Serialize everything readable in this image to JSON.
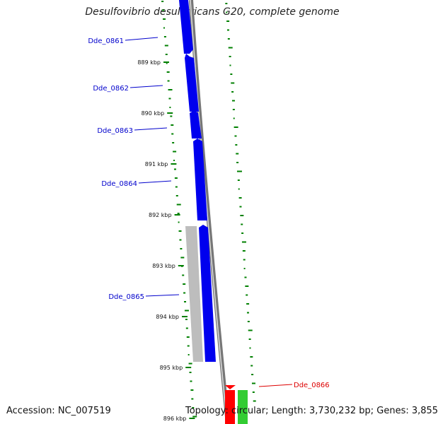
{
  "title": "Desulfovibrio desulfuricans G20, complete genome",
  "accession": "Accession: NC_007519",
  "topology": "Topology: circular; Length: 3,730,232 bp; Genes: 3,855",
  "colors": {
    "forward_gene": "#0000ee",
    "reverse_gene": "#c0c0c0",
    "trna": "#ff0000",
    "rrna": "#33cc33",
    "label_forward": "#0000cc",
    "label_rna": "#dd0000",
    "gc_ticks": "#008000",
    "backbone": "#888888"
  },
  "scale_labels": [
    "889 kbp",
    "890 kbp",
    "891 kbp",
    "892 kbp",
    "893 kbp",
    "894 kbp",
    "895 kbp",
    "896 kbp"
  ],
  "gene_labels": [
    {
      "text": "Dde_0861",
      "kind": "forward"
    },
    {
      "text": "Dde_0862",
      "kind": "forward"
    },
    {
      "text": "Dde_0863",
      "kind": "forward"
    },
    {
      "text": "Dde_0864",
      "kind": "forward"
    },
    {
      "text": "Dde_0865",
      "kind": "forward"
    },
    {
      "text": "Dde_0866",
      "kind": "rna"
    }
  ]
}
